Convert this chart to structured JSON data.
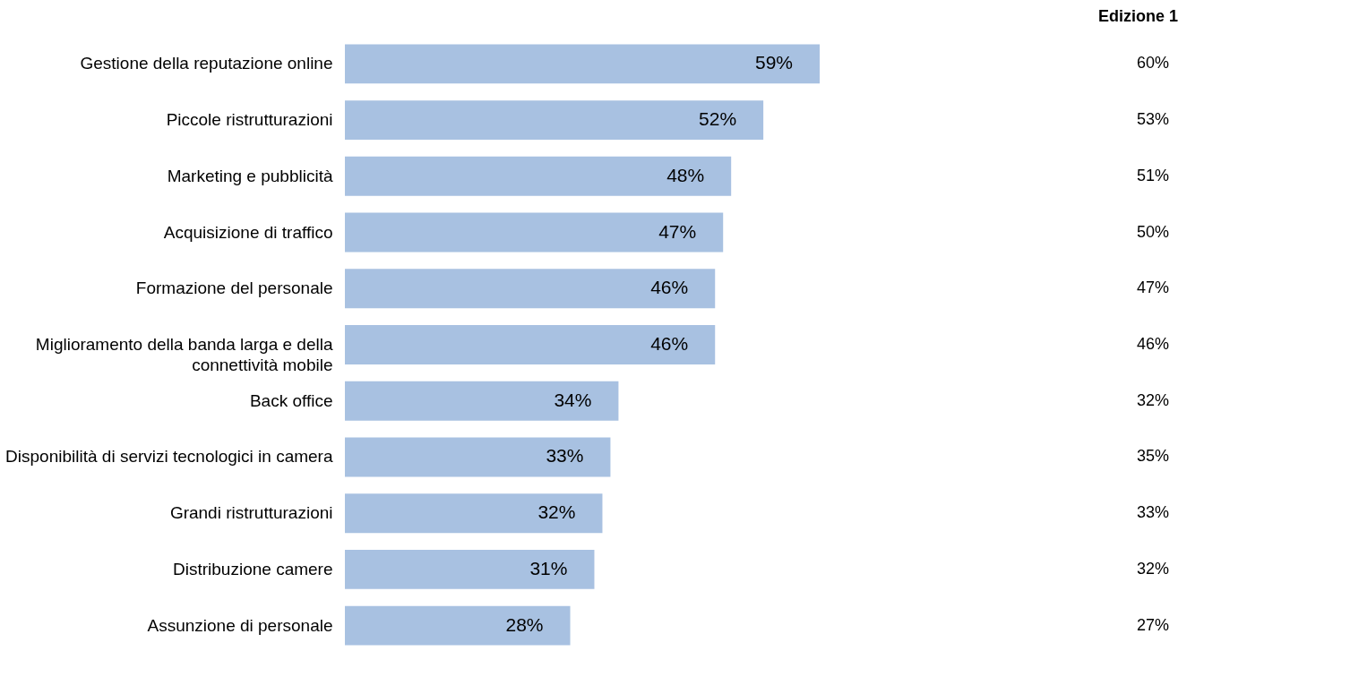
{
  "chart_data": {
    "type": "bar",
    "orientation": "horizontal",
    "categories": [
      "Gestione della reputazione online",
      "Piccole ristrutturazioni",
      "Marketing e pubblicità",
      "Acquisizione di traffico",
      "Formazione del personale",
      "Miglioramento della banda larga e della\nconnettività mobile",
      "Back office",
      "Disponibilità di servizi tecnologici in camera",
      "Grandi ristrutturazioni",
      "Distribuzione camere",
      "Assunzione di personale"
    ],
    "series": [
      {
        "color": "#a8c1e1",
        "values": [
          59,
          52,
          48,
          47,
          46,
          46,
          34,
          33,
          32,
          31,
          28
        ],
        "value_labels": [
          "59%",
          "52%",
          "48%",
          "47%",
          "46%",
          "46%",
          "34%",
          "33%",
          "32%",
          "31%",
          "28%"
        ]
      }
    ],
    "annotations": [
      "Edizione 1",
      "60%",
      "53%",
      "51%",
      "50%",
      "47%",
      "46%",
      "32%",
      "35%",
      "33%",
      "32%",
      "27%"
    ]
  }
}
